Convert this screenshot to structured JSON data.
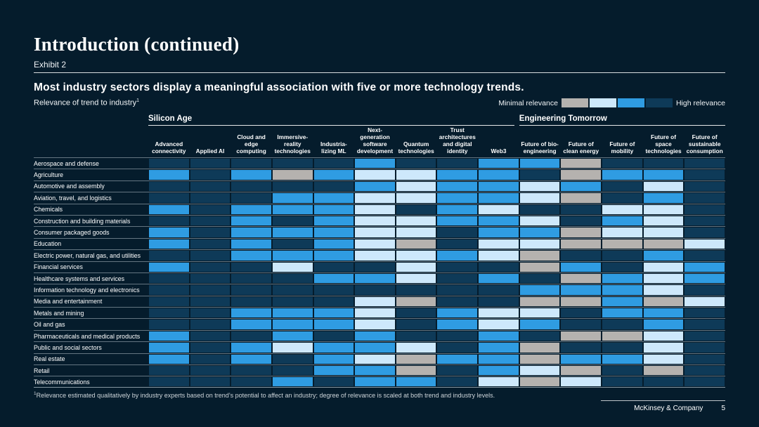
{
  "slide": {
    "title": "Introduction (continued)",
    "exhibit": "Exhibit 2",
    "headline": "Most industry sectors display a meaningful association with five or more technology trends.",
    "subtitle": "Relevance of trend to industry",
    "subtitle_sup": "1",
    "footnote_sup": "1",
    "footnote": "Relevance estimated qualitatively by industry experts based on trend’s potential to affect an industry; degree of relevance is scaled at both trend and industry levels.",
    "footer": {
      "brand": "McKinsey & Company",
      "page": "5"
    }
  },
  "legend": {
    "min_label": "Minimal relevance",
    "max_label": "High relevance",
    "levels": [
      {
        "key": "G",
        "rank": 1,
        "color": "#b5b2af"
      },
      {
        "key": "L",
        "rank": 2,
        "color": "#cde8fb"
      },
      {
        "key": "M",
        "rank": 3,
        "color": "#2f9ce2"
      },
      {
        "key": "D",
        "rank": 4,
        "color": "#0e3a58"
      }
    ]
  },
  "chart_data": {
    "type": "heatmap",
    "title": "Relevance of trend to industry",
    "legend_position": "top-right",
    "scale_note": "G = minimal relevance (gray), L = light blue, M = medium blue, D = dark blue (high relevance)",
    "groups": [
      {
        "label": "Silicon Age",
        "span": 9
      },
      {
        "label": "Engineering Tomorrow",
        "span": 5
      }
    ],
    "columns": [
      "Advanced\nconnectivity",
      "Applied AI",
      "Cloud and\nedge\ncomputing",
      "Immersive-\nreality\ntechnologies",
      "Industria-\nlizing ML",
      "Next-\ngeneration\nsoftware\ndevelopment",
      "Quantum\ntechnologies",
      "Trust\narchitectures\nand digital\nidentity",
      "Web3",
      "Future of bio-\nengineering",
      "Future of\nclean energy",
      "Future of\nmobility",
      "Future of\nspace\ntechnologies",
      "Future of\nsustainable\nconsumption"
    ],
    "rows": [
      "Aerospace and defense",
      "Agriculture",
      "Automotive and assembly",
      "Aviation, travel, and logistics",
      "Chemicals",
      "Construction and building materials",
      "Consumer packaged goods",
      "Education",
      "Electric power, natural gas, and utilities",
      "Financial services",
      "Healthcare systems and services",
      "Information technology and electronics",
      "Media and entertainment",
      "Metals and mining",
      "Oil and gas",
      "Pharmaceuticals and medical products",
      "Public and social sectors",
      "Real estate",
      "Retail",
      "Telecommunications"
    ],
    "values": [
      [
        "D",
        "D",
        "D",
        "D",
        "D",
        "M",
        "D",
        "D",
        "M",
        "M",
        "G",
        "D",
        "D",
        "D"
      ],
      [
        "M",
        "D",
        "M",
        "G",
        "M",
        "L",
        "L",
        "M",
        "M",
        "D",
        "G",
        "M",
        "M",
        "D"
      ],
      [
        "D",
        "D",
        "D",
        "D",
        "D",
        "M",
        "L",
        "M",
        "M",
        "L",
        "M",
        "D",
        "L",
        "D"
      ],
      [
        "D",
        "D",
        "D",
        "M",
        "M",
        "L",
        "L",
        "M",
        "M",
        "L",
        "G",
        "D",
        "M",
        "D"
      ],
      [
        "M",
        "D",
        "M",
        "M",
        "M",
        "L",
        "D",
        "M",
        "L",
        "D",
        "D",
        "L",
        "L",
        "D"
      ],
      [
        "D",
        "D",
        "M",
        "D",
        "M",
        "L",
        "L",
        "M",
        "M",
        "L",
        "D",
        "M",
        "L",
        "D"
      ],
      [
        "M",
        "D",
        "M",
        "M",
        "M",
        "L",
        "L",
        "D",
        "M",
        "M",
        "G",
        "L",
        "L",
        "D"
      ],
      [
        "M",
        "D",
        "M",
        "D",
        "M",
        "L",
        "G",
        "D",
        "L",
        "L",
        "G",
        "G",
        "G",
        "L"
      ],
      [
        "D",
        "D",
        "M",
        "M",
        "M",
        "L",
        "L",
        "M",
        "L",
        "G",
        "D",
        "D",
        "M",
        "D"
      ],
      [
        "M",
        "D",
        "D",
        "L",
        "D",
        "D",
        "L",
        "D",
        "D",
        "G",
        "M",
        "D",
        "L",
        "M"
      ],
      [
        "D",
        "D",
        "D",
        "D",
        "M",
        "M",
        "L",
        "D",
        "M",
        "D",
        "G",
        "M",
        "L",
        "M"
      ],
      [
        "D",
        "D",
        "D",
        "D",
        "D",
        "D",
        "D",
        "D",
        "D",
        "M",
        "M",
        "M",
        "L",
        "D"
      ],
      [
        "D",
        "D",
        "D",
        "D",
        "D",
        "L",
        "G",
        "D",
        "D",
        "G",
        "G",
        "M",
        "G",
        "L"
      ],
      [
        "D",
        "D",
        "M",
        "M",
        "M",
        "L",
        "D",
        "M",
        "L",
        "L",
        "D",
        "M",
        "M",
        "D"
      ],
      [
        "D",
        "D",
        "M",
        "M",
        "M",
        "L",
        "D",
        "M",
        "L",
        "M",
        "D",
        "D",
        "M",
        "D"
      ],
      [
        "M",
        "D",
        "D",
        "M",
        "D",
        "M",
        "D",
        "D",
        "M",
        "D",
        "G",
        "G",
        "L",
        "D"
      ],
      [
        "M",
        "D",
        "M",
        "L",
        "M",
        "M",
        "L",
        "D",
        "M",
        "G",
        "D",
        "D",
        "L",
        "D"
      ],
      [
        "M",
        "D",
        "M",
        "D",
        "M",
        "L",
        "G",
        "M",
        "M",
        "G",
        "M",
        "M",
        "L",
        "D"
      ],
      [
        "D",
        "D",
        "D",
        "D",
        "M",
        "M",
        "G",
        "D",
        "M",
        "L",
        "G",
        "D",
        "G",
        "D"
      ],
      [
        "D",
        "D",
        "D",
        "M",
        "D",
        "M",
        "M",
        "D",
        "L",
        "G",
        "L",
        "D",
        "D",
        "D"
      ]
    ]
  }
}
